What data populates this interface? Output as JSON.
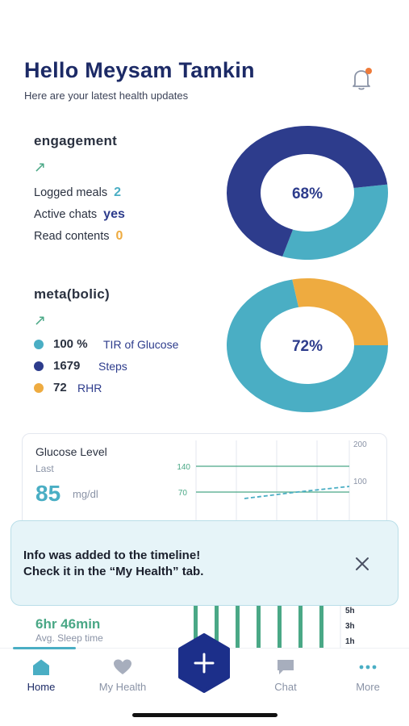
{
  "header": {
    "greeting": "Hello Meysam Tamkin",
    "subtitle": "Here are your latest health updates"
  },
  "engagement": {
    "title": "engagement",
    "trend_arrow": "↗",
    "stats": [
      {
        "label": "Logged meals",
        "value": "2",
        "color": "#4aaec4"
      },
      {
        "label": "Active chats",
        "value": "yes",
        "color": "#2d3c8c"
      },
      {
        "label": "Read contents",
        "value": "0",
        "color": "#eeab40"
      }
    ],
    "donut_label": "68%",
    "donut_fraction": 0.68
  },
  "metabolic": {
    "title": "meta(bolic)",
    "trend_arrow": "↗",
    "stats": [
      {
        "value": "100 %",
        "label": "TIR of Glucose",
        "color": "#4aaec4"
      },
      {
        "value": "1679",
        "label": "Steps",
        "color": "#2d3c8c"
      },
      {
        "value": "72",
        "label": "RHR",
        "color": "#eeab40"
      }
    ],
    "donut_label": "72%",
    "donut_fraction": 0.72
  },
  "glucose": {
    "title": "Glucose Level",
    "last_label": "Last",
    "value": "85",
    "unit": "mg/dl",
    "axis_left": [
      "140",
      "70"
    ],
    "axis_right": [
      "200",
      "100"
    ]
  },
  "toast": {
    "line1": "Info was added to the timeline!",
    "line2": "Check it in the “My Health” tab.",
    "close_icon": "close-icon"
  },
  "sleep": {
    "value": "6hr 46min",
    "label": "Avg. Sleep time",
    "axis": [
      "5h",
      "3h",
      "1h"
    ]
  },
  "tabs": [
    {
      "label": "Home",
      "icon": "home-icon",
      "active": true
    },
    {
      "label": "My Health",
      "icon": "heart-icon",
      "active": false
    },
    {
      "label": "Chat",
      "icon": "chat-icon",
      "active": false
    },
    {
      "label": "More",
      "icon": "more-icon",
      "active": false
    }
  ],
  "colors": {
    "navy": "#2d3c8c",
    "teal": "#4aaec4",
    "orange": "#eeab40",
    "green": "#4aa886",
    "bell_dot": "#ee7b3a"
  }
}
